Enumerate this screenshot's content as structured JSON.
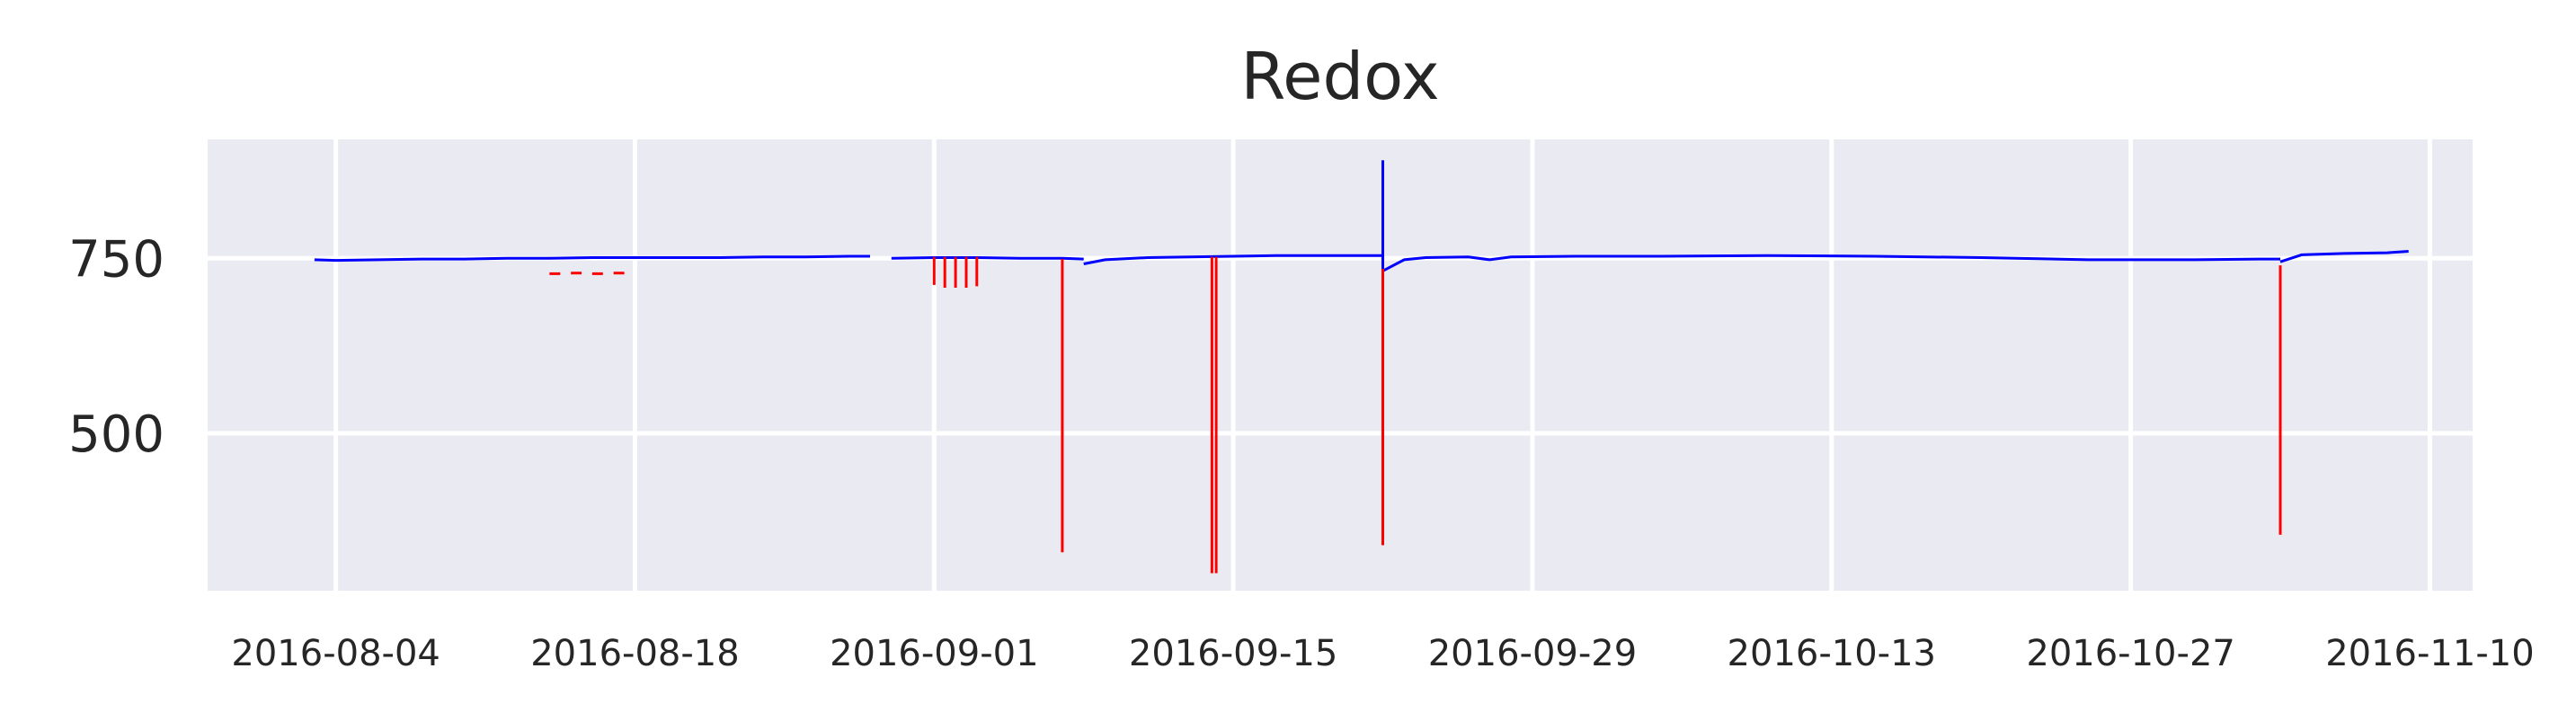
{
  "chart_data": {
    "type": "line",
    "title": "Redox",
    "xlabel": "",
    "ylabel": "",
    "grid": true,
    "x_ticks": [
      "2016-08-04",
      "2016-08-18",
      "2016-09-01",
      "2016-09-15",
      "2016-09-29",
      "2016-10-13",
      "2016-10-27",
      "2016-11-10"
    ],
    "y_ticks": [
      500,
      750
    ],
    "xlim": [
      "2016-07-29",
      "2016-11-12"
    ],
    "ylim": [
      275,
      920
    ],
    "colors": {
      "normal": "#0000ff",
      "flagged": "#ff0000",
      "panel": "#eaeaf2",
      "grid": "#ffffff"
    },
    "series": [
      {
        "color_key": "normal",
        "segments": [
          [
            [
              "2016-08-03",
              748
            ],
            [
              "2016-08-04",
              747
            ],
            [
              "2016-08-06",
              748
            ],
            [
              "2016-08-08",
              749
            ],
            [
              "2016-08-10",
              749
            ],
            [
              "2016-08-12",
              750
            ],
            [
              "2016-08-14",
              750
            ],
            [
              "2016-08-16",
              751
            ],
            [
              "2016-08-18",
              751
            ],
            [
              "2016-08-20",
              751
            ],
            [
              "2016-08-22",
              751
            ],
            [
              "2016-08-24",
              752
            ],
            [
              "2016-08-26",
              752
            ],
            [
              "2016-08-28",
              753
            ],
            [
              "2016-08-29",
              753
            ]
          ],
          [
            [
              "2016-08-30",
              750
            ],
            [
              "2016-09-01",
              751
            ],
            [
              "2016-09-03",
              751
            ],
            [
              "2016-09-05",
              750
            ],
            [
              "2016-09-07",
              750
            ],
            [
              "2016-09-08",
              749
            ]
          ],
          [
            [
              "2016-09-08",
              742
            ],
            [
              "2016-09-09",
              748
            ],
            [
              "2016-09-11",
              751
            ],
            [
              "2016-09-13",
              752
            ],
            [
              "2016-09-15",
              753
            ],
            [
              "2016-09-17",
              754
            ],
            [
              "2016-09-19",
              754
            ],
            [
              "2016-09-21",
              754
            ],
            [
              "2016-09-22",
              754
            ]
          ],
          [
            [
              "2016-09-22",
              890
            ],
            [
              "2016-09-22",
              720
            ]
          ],
          [
            [
              "2016-09-22",
              732
            ],
            [
              "2016-09-23",
              748
            ],
            [
              "2016-09-24",
              751
            ],
            [
              "2016-09-26",
              752
            ],
            [
              "2016-09-27",
              748
            ],
            [
              "2016-09-28",
              752
            ],
            [
              "2016-10-01",
              753
            ],
            [
              "2016-10-05",
              753
            ],
            [
              "2016-10-10",
              754
            ],
            [
              "2016-10-15",
              753
            ],
            [
              "2016-10-20",
              751
            ],
            [
              "2016-10-25",
              748
            ],
            [
              "2016-10-30",
              748
            ],
            [
              "2016-11-02",
              749
            ],
            [
              "2016-11-03",
              749
            ]
          ],
          [
            [
              "2016-11-03",
              745
            ],
            [
              "2016-11-04",
              755
            ],
            [
              "2016-11-06",
              757
            ],
            [
              "2016-11-08",
              758
            ],
            [
              "2016-11-09",
              760
            ]
          ]
        ]
      },
      {
        "color_key": "flagged",
        "segments": [
          [
            [
              "2016-08-14",
              728
            ],
            [
              "2016-08-14.5",
              728
            ]
          ],
          [
            [
              "2016-08-15",
              729
            ],
            [
              "2016-08-15.5",
              729
            ]
          ],
          [
            [
              "2016-08-16",
              728
            ],
            [
              "2016-08-16.5",
              728
            ]
          ],
          [
            [
              "2016-08-17",
              729
            ],
            [
              "2016-08-17.5",
              729
            ]
          ],
          [
            [
              "2016-09-01",
              752
            ],
            [
              "2016-09-01",
              712
            ]
          ],
          [
            [
              "2016-09-01.5",
              752
            ],
            [
              "2016-09-01.5",
              708
            ]
          ],
          [
            [
              "2016-09-02",
              752
            ],
            [
              "2016-09-02",
              708
            ]
          ],
          [
            [
              "2016-09-02.5",
              752
            ],
            [
              "2016-09-02.5",
              708
            ]
          ],
          [
            [
              "2016-09-03",
              752
            ],
            [
              "2016-09-03",
              710
            ]
          ],
          [
            [
              "2016-09-07",
              749
            ],
            [
              "2016-09-07",
              330
            ]
          ],
          [
            [
              "2016-09-14",
              752
            ],
            [
              "2016-09-14",
              300
            ]
          ],
          [
            [
              "2016-09-14.2",
              752
            ],
            [
              "2016-09-14.2",
              300
            ]
          ],
          [
            [
              "2016-09-22",
              735
            ],
            [
              "2016-09-22",
              340
            ]
          ],
          [
            [
              "2016-11-03",
              740
            ],
            [
              "2016-11-03",
              355
            ]
          ]
        ]
      }
    ]
  }
}
